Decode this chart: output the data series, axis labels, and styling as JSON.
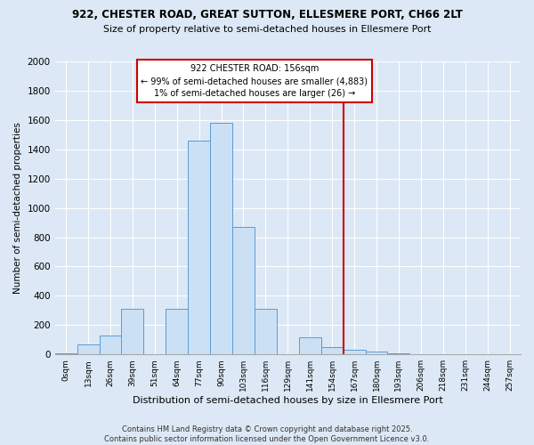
{
  "title1": "922, CHESTER ROAD, GREAT SUTTON, ELLESMERE PORT, CH66 2LT",
  "title2": "Size of property relative to semi-detached houses in Ellesmere Port",
  "xlabel": "Distribution of semi-detached houses by size in Ellesmere Port",
  "ylabel": "Number of semi-detached properties",
  "footer": "Contains HM Land Registry data © Crown copyright and database right 2025.\nContains public sector information licensed under the Open Government Licence v3.0.",
  "bar_labels": [
    "0sqm",
    "13sqm",
    "26sqm",
    "39sqm",
    "51sqm",
    "64sqm",
    "77sqm",
    "90sqm",
    "103sqm",
    "116sqm",
    "129sqm",
    "141sqm",
    "154sqm",
    "167sqm",
    "180sqm",
    "193sqm",
    "206sqm",
    "218sqm",
    "231sqm",
    "244sqm",
    "257sqm"
  ],
  "bar_values": [
    5,
    70,
    130,
    310,
    0,
    310,
    1460,
    1580,
    870,
    310,
    0,
    115,
    50,
    30,
    20,
    5,
    0,
    0,
    0,
    0,
    0
  ],
  "bar_color": "#cce0f5",
  "bar_edge_color": "#5b9bd5",
  "vline_x": 13.0,
  "annotation_title": "922 CHESTER ROAD: 156sqm",
  "annotation_line1": "← 99% of semi-detached houses are smaller (4,883)",
  "annotation_line2": "1% of semi-detached houses are larger (26) →",
  "vline_color": "#cc0000",
  "annotation_box_color": "#cc0000",
  "ylim": [
    0,
    2000
  ],
  "yticks": [
    0,
    200,
    400,
    600,
    800,
    1000,
    1200,
    1400,
    1600,
    1800,
    2000
  ],
  "bg_color": "#dce8f5",
  "plot_bg_color": "#dce8f5",
  "grid_color": "#ffffff"
}
